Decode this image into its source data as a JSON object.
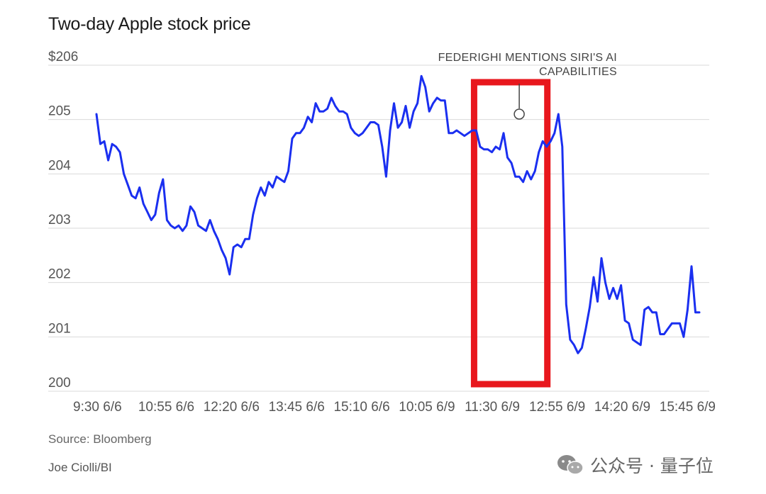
{
  "title": "Two-day Apple stock price",
  "source": "Source: Bloomberg",
  "credit": "Joe Ciolli/BI",
  "watermark": "公众号 · 量子位",
  "chart_data": {
    "type": "line",
    "title": "Two-day Apple stock price",
    "xlabel": "",
    "ylabel": "",
    "ylim": [
      200,
      206
    ],
    "yticks": [
      "$206",
      "205",
      "204",
      "203",
      "202",
      "201",
      "200"
    ],
    "xticks": [
      "9:30 6/6",
      "10:55 6/6",
      "12:20 6/6",
      "13:45 6/6",
      "15:10 6/6",
      "10:05 6/9",
      "11:30 6/9",
      "12:55 6/9",
      "14:20 6/9",
      "15:45 6/9"
    ],
    "grid": true,
    "line_color": "#1a2ff0",
    "highlight_color": "#e8171d",
    "annotation": {
      "lines": [
        "FEDERIGHI MENTIONS SIRI'S AI",
        "CAPABILITIES"
      ],
      "x_index": 108,
      "y": 205.1
    },
    "highlight_range": {
      "start_index": 99,
      "end_index": 113
    },
    "series": [
      {
        "values": [
          205.1,
          204.55,
          204.6,
          204.25,
          204.55,
          204.5,
          204.4,
          204.0,
          203.8,
          203.6,
          203.55,
          203.75,
          203.45,
          203.3,
          203.15,
          203.25,
          203.65,
          203.9,
          203.15,
          203.05,
          203.0,
          203.05,
          202.95,
          203.05,
          203.4,
          203.3,
          203.05,
          203.0,
          202.95,
          203.15,
          202.95,
          202.8,
          202.6,
          202.45,
          202.15,
          202.65,
          202.7,
          202.65,
          202.8,
          202.8,
          203.25,
          203.55,
          203.75,
          203.6,
          203.85,
          203.75,
          203.95,
          203.9,
          203.85,
          204.05,
          204.65,
          204.75,
          204.75,
          204.85,
          205.05,
          204.95,
          205.3,
          205.15,
          205.15,
          205.2,
          205.4,
          205.25,
          205.15,
          205.15,
          205.1,
          204.85,
          204.75,
          204.7,
          204.75,
          204.85,
          204.95,
          204.95,
          204.9,
          204.5,
          203.95,
          204.8,
          205.3,
          204.85,
          204.95,
          205.25,
          204.85,
          205.15,
          205.3,
          205.8,
          205.6,
          205.15,
          205.3,
          205.4,
          205.35,
          205.35,
          204.75,
          204.75,
          204.8,
          204.75,
          204.7,
          204.75,
          204.8,
          204.8,
          204.5,
          204.45,
          204.45,
          204.4,
          204.5,
          204.45,
          204.75,
          204.3,
          204.2,
          203.95,
          203.95,
          203.85,
          204.05,
          203.9,
          204.05,
          204.4,
          204.6,
          204.5,
          204.6,
          204.75,
          205.1,
          204.5,
          201.6,
          200.95,
          200.85,
          200.7,
          200.8,
          201.15,
          201.55,
          202.1,
          201.65,
          202.45,
          202.0,
          201.7,
          201.9,
          201.7,
          201.95,
          201.3,
          201.25,
          200.95,
          200.9,
          200.85,
          201.5,
          201.55,
          201.45,
          201.45,
          201.05,
          201.05,
          201.15,
          201.25,
          201.25,
          201.25,
          201.0,
          201.5,
          202.3,
          201.45,
          201.45
        ]
      }
    ]
  }
}
